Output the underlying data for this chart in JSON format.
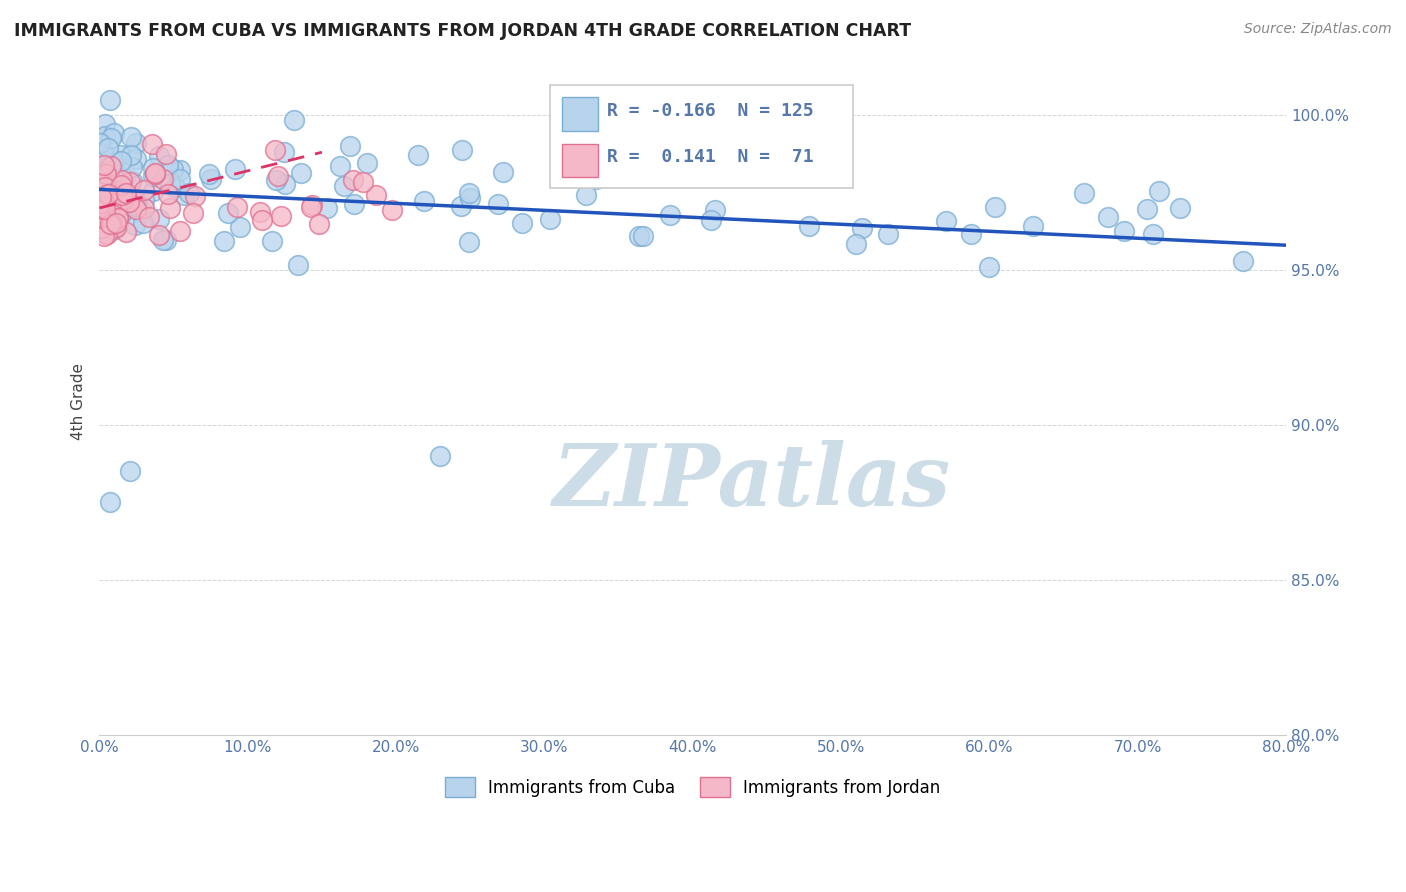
{
  "title": "IMMIGRANTS FROM CUBA VS IMMIGRANTS FROM JORDAN 4TH GRADE CORRELATION CHART",
  "source_text": "Source: ZipAtlas.com",
  "ylabel_label": "4th Grade",
  "xmin": 0.0,
  "xmax": 80.0,
  "ymin": 80.0,
  "ymax": 101.5,
  "legend_r_cuba": "-0.166",
  "legend_n_cuba": "125",
  "legend_r_jordan": "0.141",
  "legend_n_jordan": "71",
  "cuba_color": "#b8d4ed",
  "cuba_edge_color": "#7aadd4",
  "jordan_color": "#f5b8c8",
  "jordan_edge_color": "#e07090",
  "trend_cuba_color": "#2255bb",
  "trend_jordan_color": "#dd3366",
  "watermark_color": "#cddde8",
  "watermark_text": "ZIPatlas",
  "background_color": "#ffffff",
  "grid_color": "#cccccc",
  "tick_color": "#5577aa",
  "title_color": "#222222",
  "source_color": "#888888",
  "ylabel_color": "#444444",
  "yticks": [
    80.0,
    85.0,
    90.0,
    95.0,
    100.0
  ],
  "xtick_count": 9
}
